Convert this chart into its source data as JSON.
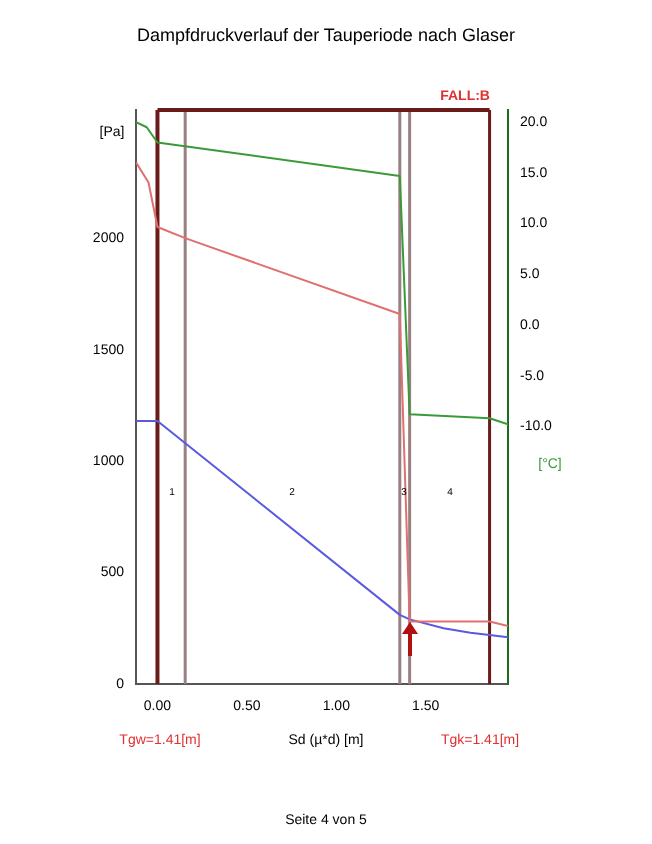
{
  "chart_data": {
    "type": "line",
    "title": "Dampfdruckverlauf der Tauperiode nach Glaser",
    "xlabel": "Sd (µ*d) [m]",
    "ylabel": "[Pa]",
    "y2label": "[°C]",
    "xlim": [
      -0.12,
      1.96
    ],
    "xticks": [
      {
        "value": 0,
        "label": "0.00"
      },
      {
        "value": 0.5,
        "label": "0.50"
      },
      {
        "value": 1,
        "label": "1.00"
      },
      {
        "value": 1.5,
        "label": "1.50"
      }
    ],
    "ylim": [
      0,
      2575
    ],
    "yticks": [
      0,
      500,
      1000,
      1500,
      2000
    ],
    "y2lim": [
      -35.4,
      21.2
    ],
    "y2ticks": [
      {
        "value": -10,
        "label": "-10.0"
      },
      {
        "value": -5,
        "label": "-5.0"
      },
      {
        "value": 0,
        "label": "0.0"
      },
      {
        "value": 5,
        "label": "5.0"
      },
      {
        "value": 10,
        "label": "10.0"
      },
      {
        "value": 15,
        "label": "15.0"
      },
      {
        "value": 20,
        "label": "20.0"
      }
    ],
    "grid": false,
    "legend": false,
    "marker": "none",
    "line_style": "solid",
    "series": [
      {
        "color": "#3a9a3a",
        "axis": "y2",
        "x": [
          -0.12,
          -0.06,
          0,
          1.355,
          1.41,
          1.857,
          1.96
        ],
        "values": [
          20,
          19.5,
          18,
          14.7,
          -8.8,
          -9.2,
          -9.8
        ]
      },
      {
        "color": "#e07070",
        "x": [
          -0.12,
          -0.05,
          0,
          0.155,
          1.355,
          1.41,
          1.857,
          1.96
        ],
        "values": [
          2340,
          2250,
          2050,
          2000,
          1660,
          280,
          280,
          260
        ]
      },
      {
        "color": "#5a5ae0",
        "x": [
          -0.12,
          0,
          1.355,
          1.41,
          1.6,
          1.75,
          1.857,
          1.96
        ],
        "values": [
          1180,
          1180,
          310,
          290,
          250,
          230,
          220,
          210
        ]
      }
    ],
    "ref_lines": [
      {
        "axis": "x",
        "value": 0,
        "color": "#6b1a1a"
      },
      {
        "axis": "x",
        "value": 0.155,
        "color": "#9a8080"
      },
      {
        "axis": "x",
        "value": 1.355,
        "color": "#9a8080"
      },
      {
        "axis": "x",
        "value": 1.41,
        "color": "#9a8080"
      },
      {
        "axis": "x",
        "value": 1.857,
        "color": "#6b1a1a"
      }
    ],
    "annotations": [
      "FALL:B",
      "Tgw=1.41[m]",
      "Tgk=1.41[m]",
      "Seite 4 von 5",
      "1",
      "2",
      "3",
      "4"
    ]
  }
}
